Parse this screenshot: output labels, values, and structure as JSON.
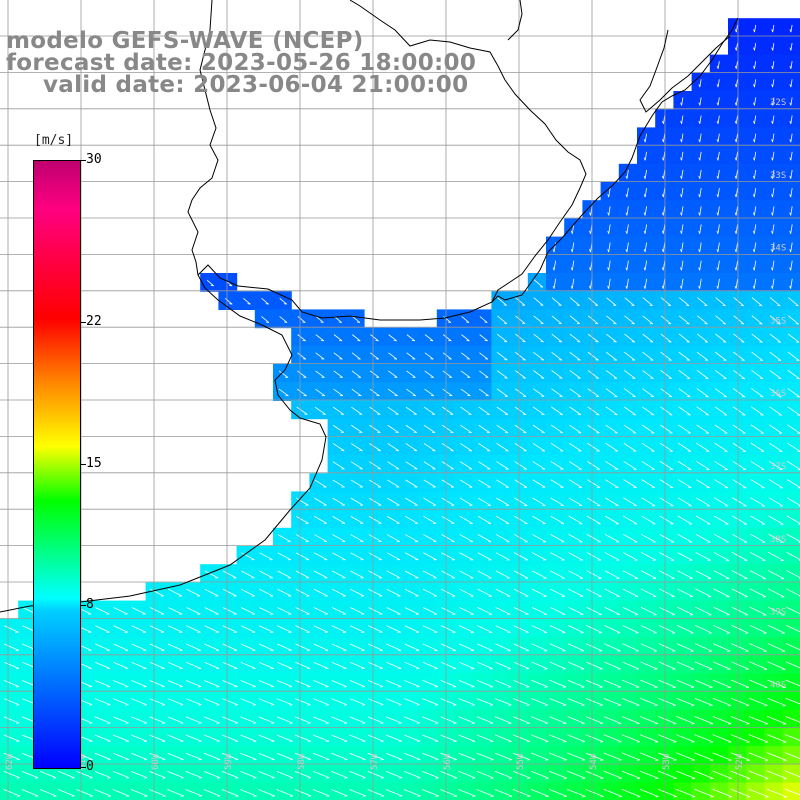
{
  "title": {
    "line1": "modelo GEFS-WAVE (NCEP)",
    "line2": "forecast date: 2023-05-26 18:00:00",
    "line3": "valid date: 2023-06-04 21:00:00"
  },
  "colorbar": {
    "unit": "[m/s]",
    "min": 0,
    "max": 30,
    "ticks": [
      {
        "label": "30",
        "value": 30
      },
      {
        "label": "22",
        "value": 22
      },
      {
        "label": "15",
        "value": 15
      },
      {
        "label": "8",
        "value": 8
      },
      {
        "label": "0",
        "value": 0
      }
    ],
    "colors": [
      "#0000ff",
      "#00d0ff",
      "#00ffff",
      "#00ff00",
      "#ffff00",
      "#ff8000",
      "#ff0000",
      "#ff0080",
      "#c00070"
    ]
  },
  "map": {
    "variable": "wind speed",
    "land_color": "#ffffff",
    "coastline_color": "#000000",
    "grid_color": "#999999",
    "arrow_color": "#ffffff",
    "lat_labels": [
      "32S",
      "33S",
      "34S",
      "35S",
      "36S",
      "37S",
      "38S",
      "39S",
      "40S"
    ],
    "lon_labels": [
      "62W",
      "61W",
      "60W",
      "59W",
      "58W",
      "57W",
      "56W",
      "55W",
      "54W",
      "53W",
      "52W"
    ]
  }
}
